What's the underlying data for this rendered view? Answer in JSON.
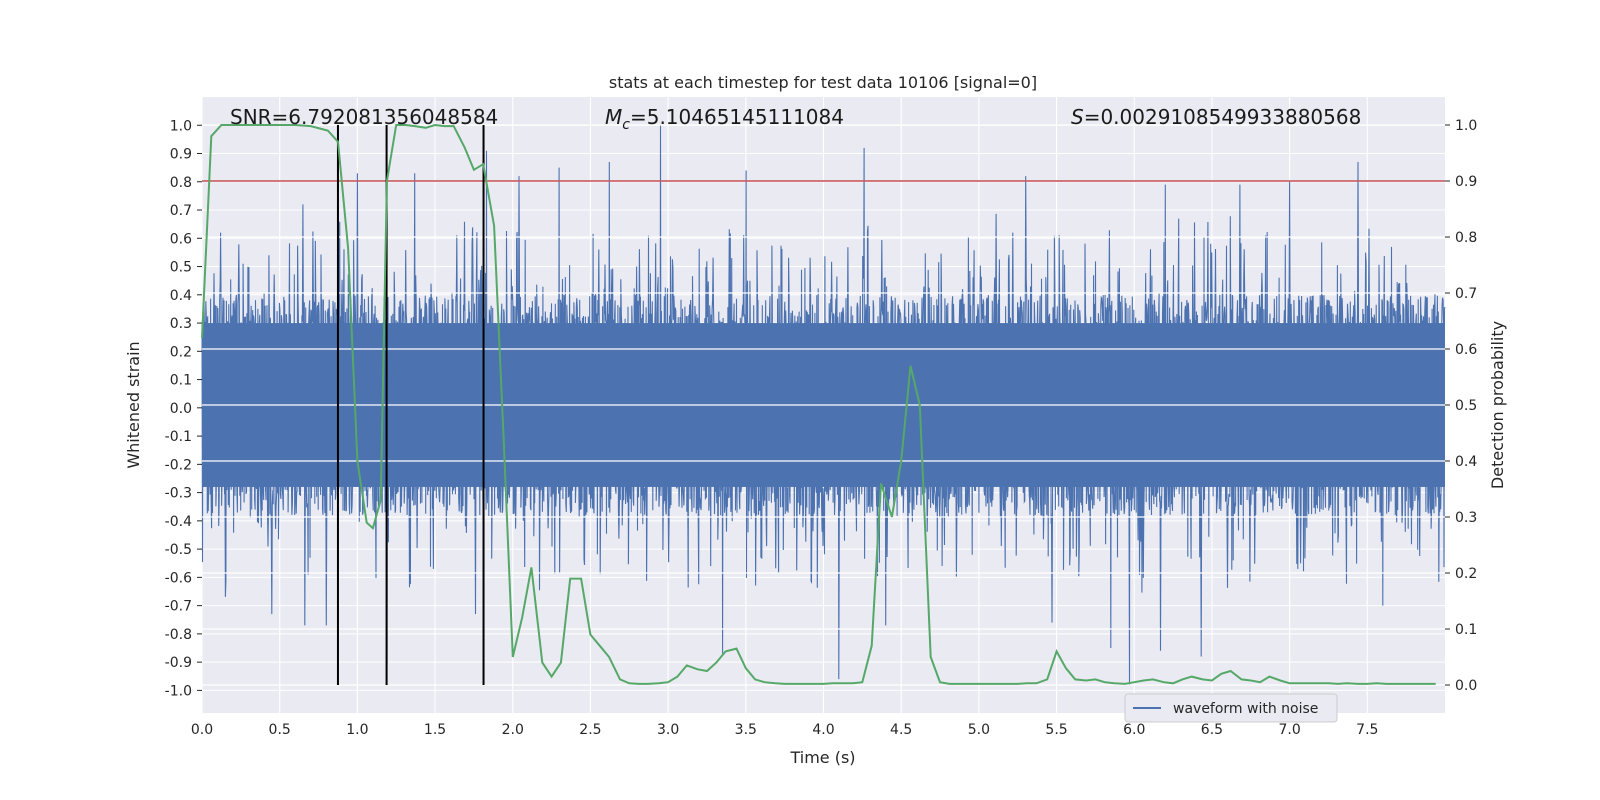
{
  "chart_data": {
    "type": "line",
    "title": "stats at each timestep for test data 10106 [signal=0]",
    "xlabel": "Time (s)",
    "ylabel": "Whitened strain",
    "ylabel_right": "Detection probability",
    "xlim": [
      0.0,
      8.0
    ],
    "ylim": [
      -1.08,
      1.1
    ],
    "ylim_right": [
      -0.05,
      1.05
    ],
    "x_ticks": [
      "0.0",
      "0.5",
      "1.0",
      "1.5",
      "2.0",
      "2.5",
      "3.0",
      "3.5",
      "4.0",
      "4.5",
      "5.0",
      "5.5",
      "6.0",
      "6.5",
      "7.0",
      "7.5"
    ],
    "y_ticks": [
      "1.0",
      "0.9",
      "0.8",
      "0.7",
      "0.6",
      "0.5",
      "0.4",
      "0.3",
      "0.2",
      "0.1",
      "0.0",
      "-0.1",
      "-0.2",
      "-0.3",
      "-0.4",
      "-0.5",
      "-0.6",
      "-0.7",
      "-0.8",
      "-0.9",
      "-1.0"
    ],
    "y_right_ticks": [
      "1.0",
      "0.9",
      "0.8",
      "0.7",
      "0.6",
      "0.5",
      "0.4",
      "0.3",
      "0.2",
      "0.1",
      "0.0"
    ],
    "annotations": {
      "snr": "SNR=6.792081356048584",
      "mc_symbol": "M",
      "mc_sub": "c",
      "mc_value": "=5.10465145111084",
      "s_symbol": "S",
      "s_value": "=0.0029108549933880568"
    },
    "legend": {
      "label": "waveform with noise",
      "position": "lower-right"
    },
    "threshold": {
      "value_right": 0.9,
      "color": "#c44e52"
    },
    "vlines": [
      0.875,
      1.188,
      1.812
    ],
    "strain_series": {
      "name": "waveform with noise",
      "color": "#4c72b0",
      "core_envelope": [
        -0.38,
        0.4
      ],
      "peaks": [
        {
          "t": 0.12,
          "v": 0.62
        },
        {
          "t": 0.65,
          "v": 0.72
        },
        {
          "t": 1.0,
          "v": 0.83
        },
        {
          "t": 1.37,
          "v": 0.83
        },
        {
          "t": 1.83,
          "v": 0.91
        },
        {
          "t": 2.04,
          "v": 0.82
        },
        {
          "t": 2.3,
          "v": 0.85
        },
        {
          "t": 2.62,
          "v": 0.87
        },
        {
          "t": 2.95,
          "v": 1.0
        },
        {
          "t": 3.5,
          "v": 0.84
        },
        {
          "t": 4.26,
          "v": 0.92
        },
        {
          "t": 5.3,
          "v": 0.82
        },
        {
          "t": 6.2,
          "v": 0.79
        },
        {
          "t": 6.68,
          "v": 0.79
        },
        {
          "t": 7.0,
          "v": 0.8
        },
        {
          "t": 7.44,
          "v": 0.87
        }
      ],
      "troughs": [
        {
          "t": 0.45,
          "v": -0.73
        },
        {
          "t": 0.66,
          "v": -0.77
        },
        {
          "t": 0.8,
          "v": -0.77
        },
        {
          "t": 1.19,
          "v": -0.91
        },
        {
          "t": 1.76,
          "v": -0.73
        },
        {
          "t": 3.35,
          "v": -0.87
        },
        {
          "t": 4.1,
          "v": -0.96
        },
        {
          "t": 4.4,
          "v": -0.77
        },
        {
          "t": 5.47,
          "v": -0.76
        },
        {
          "t": 5.85,
          "v": -0.85
        },
        {
          "t": 5.97,
          "v": -0.98
        },
        {
          "t": 6.17,
          "v": -0.86
        },
        {
          "t": 6.43,
          "v": -0.88
        },
        {
          "t": 7.6,
          "v": -0.7
        }
      ]
    },
    "probability_series": {
      "name": "Detection probability",
      "color": "#55a868",
      "x": [
        0.0,
        0.06,
        0.125,
        0.2,
        0.3,
        0.4,
        0.5,
        0.6,
        0.7,
        0.81,
        0.875,
        0.94,
        1.0,
        1.06,
        1.1,
        1.15,
        1.19,
        1.25,
        1.31,
        1.37,
        1.44,
        1.5,
        1.56,
        1.62,
        1.69,
        1.75,
        1.81,
        1.88,
        1.94,
        2.0,
        2.06,
        2.12,
        2.19,
        2.25,
        2.31,
        2.37,
        2.44,
        2.5,
        2.56,
        2.62,
        2.69,
        2.75,
        2.81,
        2.87,
        2.94,
        3.0,
        3.06,
        3.12,
        3.19,
        3.25,
        3.31,
        3.37,
        3.44,
        3.5,
        3.56,
        3.62,
        3.69,
        3.75,
        3.81,
        3.87,
        3.94,
        4.0,
        4.06,
        4.12,
        4.19,
        4.25,
        4.31,
        4.37,
        4.44,
        4.5,
        4.56,
        4.62,
        4.69,
        4.75,
        4.81,
        4.87,
        4.94,
        5.0,
        5.06,
        5.12,
        5.19,
        5.25,
        5.31,
        5.37,
        5.44,
        5.5,
        5.56,
        5.62,
        5.69,
        5.75,
        5.81,
        5.87,
        5.94,
        6.0,
        6.06,
        6.12,
        6.19,
        6.25,
        6.31,
        6.37,
        6.44,
        6.5,
        6.56,
        6.62,
        6.69,
        6.75,
        6.81,
        6.87,
        6.94,
        7.0,
        7.06,
        7.12,
        7.19,
        7.25,
        7.31,
        7.37,
        7.44,
        7.5,
        7.56,
        7.62,
        7.69,
        7.75,
        7.81,
        7.87,
        7.94
      ],
      "y": [
        0.62,
        0.98,
        1.0,
        1.0,
        1.0,
        1.0,
        1.0,
        1.0,
        0.998,
        0.99,
        0.97,
        0.78,
        0.4,
        0.29,
        0.28,
        0.33,
        0.9,
        1.0,
        1.0,
        0.998,
        0.995,
        1.0,
        0.998,
        0.998,
        0.96,
        0.92,
        0.93,
        0.82,
        0.45,
        0.05,
        0.12,
        0.21,
        0.04,
        0.015,
        0.04,
        0.19,
        0.19,
        0.09,
        0.07,
        0.05,
        0.01,
        0.003,
        0.002,
        0.002,
        0.003,
        0.005,
        0.015,
        0.035,
        0.028,
        0.025,
        0.04,
        0.06,
        0.065,
        0.03,
        0.01,
        0.005,
        0.003,
        0.002,
        0.002,
        0.002,
        0.002,
        0.002,
        0.003,
        0.003,
        0.003,
        0.005,
        0.07,
        0.36,
        0.3,
        0.4,
        0.57,
        0.5,
        0.05,
        0.005,
        0.002,
        0.002,
        0.002,
        0.002,
        0.002,
        0.002,
        0.002,
        0.002,
        0.003,
        0.003,
        0.01,
        0.06,
        0.03,
        0.01,
        0.008,
        0.01,
        0.005,
        0.003,
        0.002,
        0.005,
        0.008,
        0.01,
        0.005,
        0.003,
        0.01,
        0.015,
        0.01,
        0.008,
        0.02,
        0.025,
        0.01,
        0.008,
        0.005,
        0.015,
        0.008,
        0.003,
        0.003,
        0.003,
        0.003,
        0.003,
        0.002,
        0.003,
        0.002,
        0.002,
        0.003,
        0.002,
        0.002,
        0.002,
        0.002,
        0.002,
        0.002
      ]
    }
  }
}
